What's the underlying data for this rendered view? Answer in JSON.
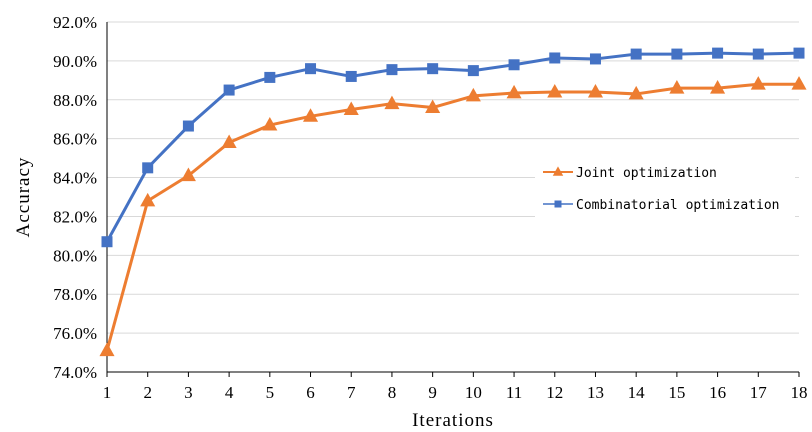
{
  "chart_data": {
    "type": "line",
    "x": [
      1,
      2,
      3,
      4,
      5,
      6,
      7,
      8,
      9,
      10,
      11,
      12,
      13,
      14,
      15,
      16,
      17,
      18
    ],
    "xlabel": "Iterations",
    "ylabel": "Accuracy",
    "ylim": [
      74.0,
      92.0
    ],
    "yticks": [
      74.0,
      76.0,
      78.0,
      80.0,
      82.0,
      84.0,
      86.0,
      88.0,
      90.0,
      92.0
    ],
    "ytick_format": "percent_1dp",
    "grid": true,
    "legend_position": "right",
    "series": [
      {
        "name": "Joint optimization",
        "color": "#ED7D31",
        "marker": "triangle",
        "values": [
          75.1,
          82.8,
          84.1,
          85.8,
          86.7,
          87.15,
          87.5,
          87.8,
          87.6,
          88.2,
          88.35,
          88.4,
          88.4,
          88.3,
          88.6,
          88.6,
          88.8,
          88.8
        ]
      },
      {
        "name": "Combinatorial optimization",
        "color": "#4472C4",
        "marker": "square",
        "values": [
          80.7,
          84.5,
          86.65,
          88.5,
          89.15,
          89.6,
          89.2,
          89.55,
          89.6,
          89.5,
          89.8,
          90.15,
          90.1,
          90.35,
          90.35,
          90.4,
          90.35,
          90.4
        ]
      }
    ]
  }
}
